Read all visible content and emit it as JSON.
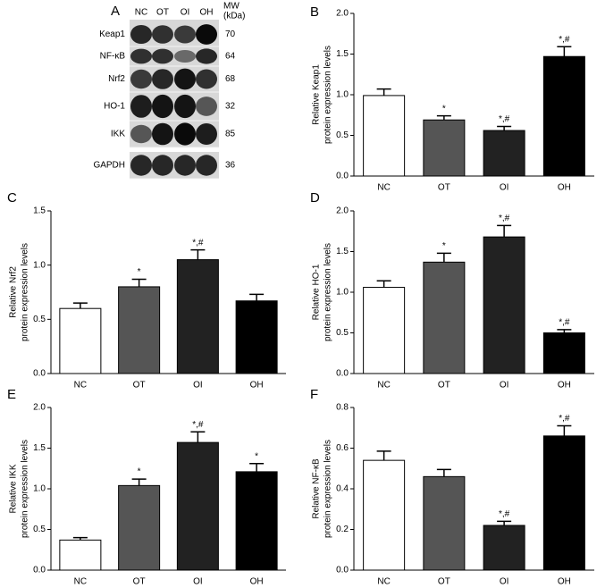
{
  "blot": {
    "panel": "A",
    "lanes": [
      "NC",
      "OT",
      "OI",
      "OH"
    ],
    "mw_header": [
      "MW",
      "(kDa)"
    ],
    "proteins": [
      {
        "name": "Keap1",
        "mw": "70"
      },
      {
        "name": "NF-κB",
        "mw": "64"
      },
      {
        "name": "Nrf2",
        "mw": "68"
      },
      {
        "name": "HO-1",
        "mw": "32"
      },
      {
        "name": "IKK",
        "mw": "85"
      },
      {
        "name": "GAPDH",
        "mw": "36"
      }
    ]
  },
  "chart_data": [
    {
      "type": "bar",
      "panel": "B",
      "ylabel": [
        "Relative Keap1",
        "protein expression levels"
      ],
      "categories": [
        "NC",
        "OT",
        "OI",
        "OH"
      ],
      "values": [
        0.99,
        0.69,
        0.56,
        1.47
      ],
      "errors": [
        0.08,
        0.05,
        0.05,
        0.12
      ],
      "annotations": [
        null,
        "*",
        "*,#",
        "*,#"
      ],
      "colors": [
        "#ffffff",
        "#555555",
        "#222222",
        "#000000"
      ],
      "ylim": [
        0,
        2.0
      ],
      "yticks": [
        {
          "value": 0,
          "label": "0.0"
        },
        {
          "value": 0.5,
          "label": "0.5"
        },
        {
          "value": 1.0,
          "label": "1.0"
        },
        {
          "value": 1.5,
          "label": "1.5"
        },
        {
          "value": 2.0,
          "label": "2.0"
        }
      ]
    },
    {
      "type": "bar",
      "panel": "C",
      "ylabel": [
        "Relative Nrf2",
        "protein expression levels"
      ],
      "categories": [
        "NC",
        "OT",
        "OI",
        "OH"
      ],
      "values": [
        0.6,
        0.8,
        1.05,
        0.67
      ],
      "errors": [
        0.05,
        0.07,
        0.09,
        0.06
      ],
      "annotations": [
        null,
        "*",
        "*,#",
        null
      ],
      "colors": [
        "#ffffff",
        "#555555",
        "#222222",
        "#000000"
      ],
      "ylim": [
        0,
        1.5
      ],
      "yticks": [
        {
          "value": 0,
          "label": "0.0"
        },
        {
          "value": 0.5,
          "label": "0.5"
        },
        {
          "value": 1.0,
          "label": "1.0"
        },
        1.5
      ]
    },
    {
      "type": "bar",
      "panel": "D",
      "ylabel": [
        "Relative HO-1",
        "protein expression levels"
      ],
      "categories": [
        "NC",
        "OT",
        "OI",
        "OH"
      ],
      "values": [
        1.06,
        1.37,
        1.68,
        0.5
      ],
      "errors": [
        0.08,
        0.11,
        0.14,
        0.04
      ],
      "annotations": [
        null,
        "*",
        "*,#",
        "*,#"
      ],
      "colors": [
        "#ffffff",
        "#555555",
        "#222222",
        "#000000"
      ],
      "ylim": [
        0,
        2.0
      ],
      "yticks": [
        {
          "value": 0,
          "label": "0.0"
        },
        {
          "value": 0.5,
          "label": "0.5"
        },
        {
          "value": 1.0,
          "label": "1.0"
        },
        1.5,
        {
          "value": 2.0,
          "label": "2.0"
        }
      ]
    },
    {
      "type": "bar",
      "panel": "E",
      "ylabel": [
        "Relative IKK",
        "protein expression levels"
      ],
      "categories": [
        "NC",
        "OT",
        "OI",
        "OH"
      ],
      "values": [
        0.37,
        1.04,
        1.57,
        1.21
      ],
      "errors": [
        0.03,
        0.08,
        0.13,
        0.1
      ],
      "annotations": [
        null,
        "*",
        "*,#",
        "*"
      ],
      "colors": [
        "#ffffff",
        "#555555",
        "#222222",
        "#000000"
      ],
      "ylim": [
        0,
        2.0
      ],
      "yticks": [
        {
          "value": 0,
          "label": "0.0"
        },
        0.5,
        {
          "value": 1.0,
          "label": "1.0"
        },
        1.5,
        {
          "value": 2.0,
          "label": "2.0"
        }
      ]
    },
    {
      "type": "bar",
      "panel": "F",
      "ylabel": [
        "Relative NF-κB",
        "protein expression levels"
      ],
      "categories": [
        "NC",
        "OT",
        "OI",
        "OH"
      ],
      "values": [
        0.54,
        0.46,
        0.22,
        0.66
      ],
      "errors": [
        0.045,
        0.035,
        0.02,
        0.05
      ],
      "annotations": [
        null,
        null,
        "*,#",
        "*,#"
      ],
      "colors": [
        "#ffffff",
        "#555555",
        "#222222",
        "#000000"
      ],
      "ylim": [
        0,
        0.8
      ],
      "yticks": [
        {
          "value": 0,
          "label": "0.0"
        },
        0.2,
        0.4,
        0.6,
        0.8
      ]
    }
  ]
}
